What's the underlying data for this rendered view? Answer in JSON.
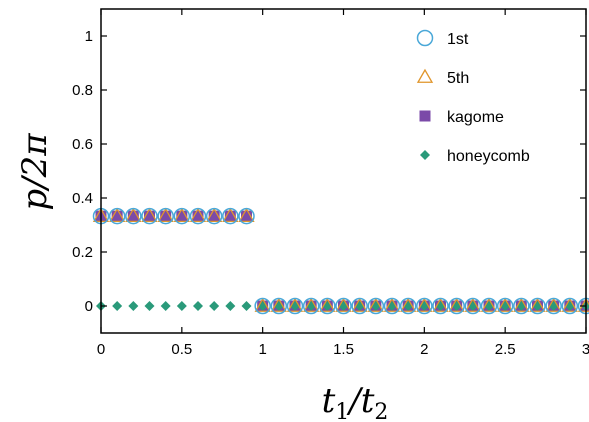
{
  "chart_data": {
    "type": "scatter",
    "title": "",
    "xlabel": "t_1/t_2",
    "ylabel": "p/2π",
    "xlim": [
      0,
      3
    ],
    "ylim": [
      -0.1,
      1.1
    ],
    "xticks": [
      0,
      0.5,
      1,
      1.5,
      2,
      2.5,
      3
    ],
    "xtick_labels": [
      "0",
      "0.5",
      "1",
      "1.5",
      "2",
      "2.5",
      "3"
    ],
    "yticks": [
      0,
      0.2,
      0.4,
      0.6,
      0.8,
      1
    ],
    "ytick_labels": [
      "0",
      "0.2",
      "0.4",
      "0.6",
      "0.8",
      "1"
    ],
    "grid": false,
    "legend_position": "top-right",
    "series": [
      {
        "name": "1st",
        "marker": "circle-open",
        "color": "#4aa8d8",
        "x": [
          0,
          0.1,
          0.2,
          0.3,
          0.4,
          0.5,
          0.6,
          0.7,
          0.8,
          0.9,
          1.0,
          1.1,
          1.2,
          1.3,
          1.4,
          1.5,
          1.6,
          1.7,
          1.8,
          1.9,
          2.0,
          2.1,
          2.2,
          2.3,
          2.4,
          2.5,
          2.6,
          2.7,
          2.8,
          2.9,
          3.0
        ],
        "y": [
          0.333,
          0.333,
          0.333,
          0.333,
          0.333,
          0.333,
          0.333,
          0.333,
          0.333,
          0.333,
          0,
          0,
          0,
          0,
          0,
          0,
          0,
          0,
          0,
          0,
          0,
          0,
          0,
          0,
          0,
          0,
          0,
          0,
          0,
          0,
          0
        ]
      },
      {
        "name": "5th",
        "marker": "triangle-open",
        "color": "#e0952a",
        "x": [
          0,
          0.1,
          0.2,
          0.3,
          0.4,
          0.5,
          0.6,
          0.7,
          0.8,
          0.9,
          1.0,
          1.1,
          1.2,
          1.3,
          1.4,
          1.5,
          1.6,
          1.7,
          1.8,
          1.9,
          2.0,
          2.1,
          2.2,
          2.3,
          2.4,
          2.5,
          2.6,
          2.7,
          2.8,
          2.9,
          3.0
        ],
        "y": [
          0.333,
          0.333,
          0.333,
          0.333,
          0.333,
          0.333,
          0.333,
          0.333,
          0.333,
          0.333,
          0,
          0,
          0,
          0,
          0,
          0,
          0,
          0,
          0,
          0,
          0,
          0,
          0,
          0,
          0,
          0,
          0,
          0,
          0,
          0,
          0
        ]
      },
      {
        "name": "kagome",
        "marker": "square-filled",
        "color": "#7b4aa8",
        "x": [
          0,
          0.1,
          0.2,
          0.3,
          0.4,
          0.5,
          0.6,
          0.7,
          0.8,
          0.9,
          1.0,
          1.1,
          1.2,
          1.3,
          1.4,
          1.5,
          1.6,
          1.7,
          1.8,
          1.9,
          2.0,
          2.1,
          2.2,
          2.3,
          2.4,
          2.5,
          2.6,
          2.7,
          2.8,
          2.9,
          3.0
        ],
        "y": [
          0.333,
          0.333,
          0.333,
          0.333,
          0.333,
          0.333,
          0.333,
          0.333,
          0.333,
          0.333,
          0,
          0,
          0,
          0,
          0,
          0,
          0,
          0,
          0,
          0,
          0,
          0,
          0,
          0,
          0,
          0,
          0,
          0,
          0,
          0,
          0
        ]
      },
      {
        "name": "honeycomb",
        "marker": "diamond-filled",
        "color": "#2a9a7a",
        "x": [
          0,
          0.1,
          0.2,
          0.3,
          0.4,
          0.5,
          0.6,
          0.7,
          0.8,
          0.9,
          1.0,
          1.1,
          1.2,
          1.3,
          1.4,
          1.5,
          1.6,
          1.7,
          1.8,
          1.9,
          2.0,
          2.1,
          2.2,
          2.3,
          2.4,
          2.5,
          2.6,
          2.7,
          2.8,
          2.9,
          3.0
        ],
        "y": [
          0,
          0,
          0,
          0,
          0,
          0,
          0,
          0,
          0,
          0,
          0,
          0,
          0,
          0,
          0,
          0,
          0,
          0,
          0,
          0,
          0,
          0,
          0,
          0,
          0,
          0,
          0,
          0,
          0,
          0,
          0
        ]
      }
    ]
  }
}
